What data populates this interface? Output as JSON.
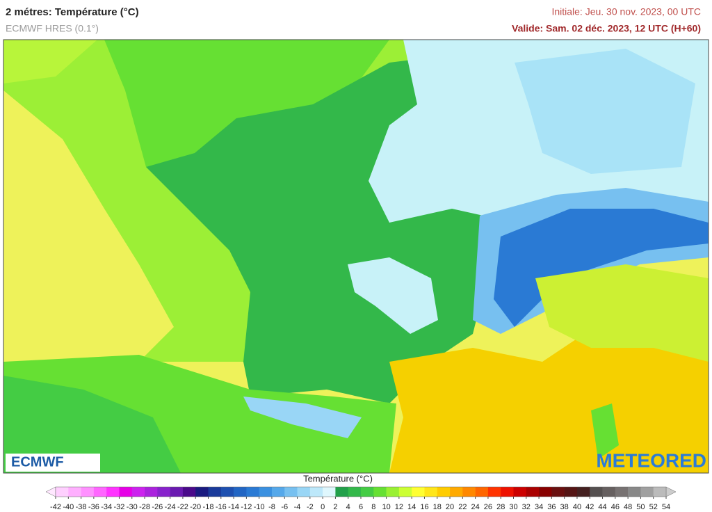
{
  "header": {
    "title": "2 métres: Température (°C)",
    "subtitle": "ECMWF HRES (0.1°)",
    "initial": "Initiale: Jeu. 30 nov. 2023, 00 UTC",
    "valid": "Valide: Sam. 02 déc. 2023, 12 UTC (H+60)"
  },
  "logos": {
    "left": "ECMWF",
    "right": "METEORED"
  },
  "legend": {
    "title": "Température (°C)",
    "ticks": [
      -42,
      -40,
      -38,
      -36,
      -34,
      -32,
      -30,
      -28,
      -26,
      -24,
      -22,
      -20,
      -18,
      -16,
      -14,
      -12,
      -10,
      -8,
      -6,
      -4,
      -2,
      0,
      2,
      4,
      6,
      8,
      10,
      12,
      14,
      16,
      18,
      20,
      22,
      24,
      26,
      28,
      30,
      32,
      34,
      36,
      38,
      40,
      42,
      44,
      46,
      48,
      50,
      52,
      54
    ],
    "colors": [
      "#ffd0ff",
      "#ffb0ff",
      "#ff90ff",
      "#ff66ff",
      "#ff33ff",
      "#e600e6",
      "#cc22ee",
      "#aa22dd",
      "#8822cc",
      "#6a1ab0",
      "#4a0a8a",
      "#1a1a80",
      "#1a3a9a",
      "#1e50b0",
      "#2266c4",
      "#2a7ad4",
      "#3a90e0",
      "#55a8ea",
      "#77c0f0",
      "#99d6f6",
      "#bde8fa",
      "#dff7fd",
      "#22a04a",
      "#33b84a",
      "#44cc44",
      "#66e033",
      "#99f033",
      "#ccff33",
      "#ffff33",
      "#ffe61a",
      "#ffcc00",
      "#ffaa00",
      "#ff8800",
      "#ff6600",
      "#ff3300",
      "#ee1100",
      "#cc0000",
      "#aa0000",
      "#880000",
      "#6a1010",
      "#551515",
      "#442020",
      "#555050",
      "#666060",
      "#777272",
      "#888888",
      "#a0a0a0",
      "#bbbbbb"
    ],
    "under_color": "#ffe8ff",
    "over_color": "#cccccc"
  }
}
